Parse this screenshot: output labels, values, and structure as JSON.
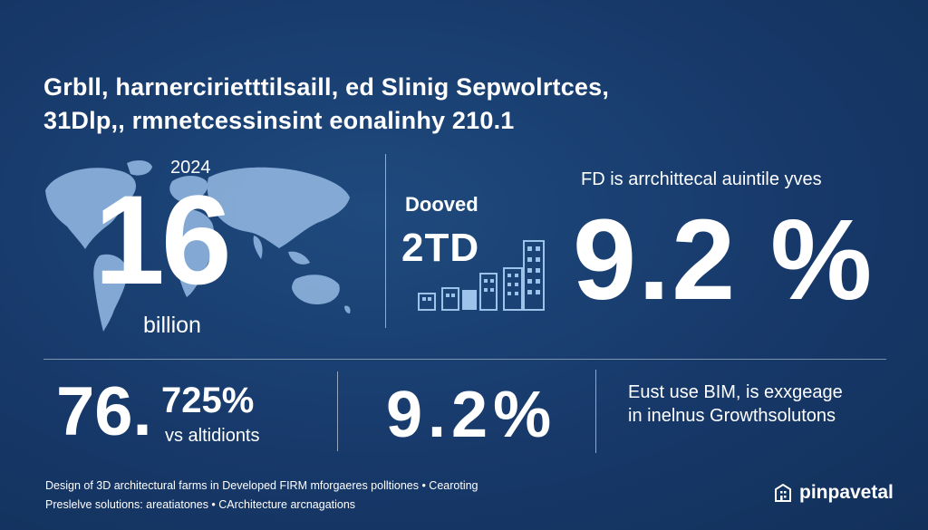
{
  "header": {
    "line1": "Grbll, harnercirietttilsaill, ed  Slinig Sepwolrtces,",
    "line2": "31Dlp,,   rmnetcessinsint eonalinhy 210.1"
  },
  "left_stat": {
    "year": "2024",
    "value": "16",
    "unit": "billion"
  },
  "middle_stat": {
    "label": "Dooved",
    "value": "2TD"
  },
  "right_stat": {
    "caption": "FD is arrchittecal auintile yves",
    "value": "9.2 %"
  },
  "bottom_left": {
    "value": "76.",
    "pct": "725%",
    "caption": "vs altidionts"
  },
  "bottom_mid": {
    "value": "9.2%"
  },
  "bottom_right": {
    "line1": "Eust use BIM, is exxgeage",
    "line2": "in inelnus Growthsolutons"
  },
  "footer": {
    "line1": "Design of 3D architectural farms in Developed FIRM mforgaeres polltiones  •  Cearoting",
    "line2": "Preslelve solutions: areatiatones  •  CArchitecture arcnagations"
  },
  "brand": {
    "name": "pinpavetal",
    "icon": "building-logo-icon"
  },
  "colors": {
    "background": "#17396a",
    "map": "#8fb4de",
    "bars": "#9ec3ea"
  }
}
